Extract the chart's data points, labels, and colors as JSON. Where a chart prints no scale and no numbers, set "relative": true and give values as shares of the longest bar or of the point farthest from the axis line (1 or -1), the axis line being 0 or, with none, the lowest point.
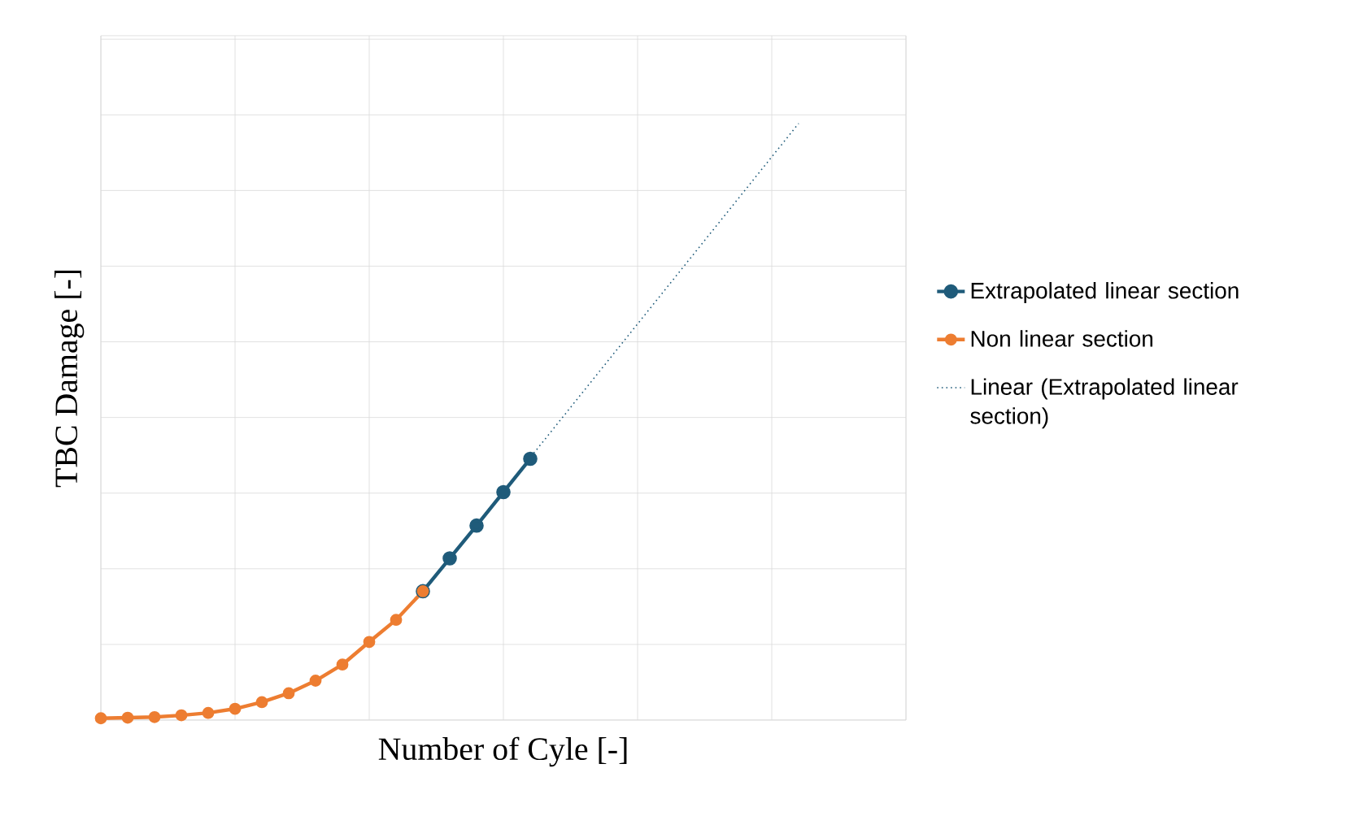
{
  "chart_data": {
    "type": "line",
    "xlabel": "Number of Cyle [-]",
    "ylabel": "TBC Damage [-]",
    "relative": true,
    "categories": [
      null,
      null,
      null,
      null,
      null,
      null,
      null,
      null,
      null,
      null,
      null,
      null,
      null,
      null,
      null,
      null,
      null,
      null,
      null,
      null,
      null,
      null,
      null,
      null,
      null,
      null,
      null,
      null,
      null,
      null,
      null
    ],
    "grid": true,
    "legend": "right",
    "marker": "circle",
    "series": [
      {
        "name": "Extrapolated linear section",
        "color": "#1f5b7a",
        "values": [
          null,
          null,
          null,
          null,
          null,
          null,
          null,
          null,
          null,
          null,
          null,
          null,
          0.216,
          0.271,
          0.326,
          0.382,
          0.438,
          null,
          null,
          null,
          null,
          null,
          null,
          null,
          null,
          null,
          null,
          null,
          null,
          null,
          null
        ]
      },
      {
        "name": "Non linear section",
        "color": "#ed7d31",
        "values": [
          0.003,
          0.004,
          0.005,
          0.008,
          0.012,
          0.019,
          0.03,
          0.045,
          0.066,
          0.093,
          0.131,
          0.168,
          0.216,
          null,
          null,
          null,
          null,
          null,
          null,
          null,
          null,
          null,
          null,
          null,
          null,
          null,
          null,
          null,
          null,
          null,
          null
        ]
      },
      {
        "name": "Linear (Extrapolated linear section)",
        "line_style": "dotted",
        "marker": "none",
        "color": "#1f5b7a",
        "values": [
          null,
          null,
          null,
          null,
          null,
          null,
          null,
          null,
          null,
          null,
          null,
          null,
          0.216,
          null,
          null,
          null,
          null,
          null,
          null,
          null,
          null,
          null,
          null,
          null,
          null,
          null,
          1.0,
          null,
          null,
          null,
          null
        ]
      }
    ]
  }
}
